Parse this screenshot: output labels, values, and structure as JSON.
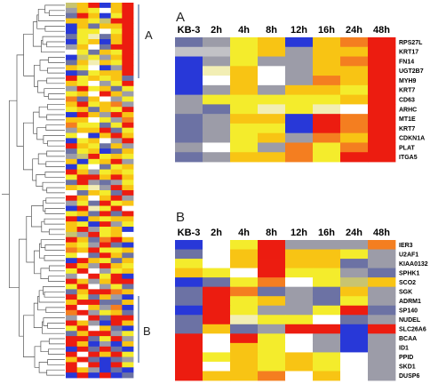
{
  "colors": {
    "blue": "#2838d8",
    "slate": "#6c72a4",
    "grey": "#9c9ca8",
    "lightgrey": "#c2c2c6",
    "white": "#ffffff",
    "paleyellow": "#f2eeb4",
    "yellow": "#f4ec2c",
    "gold": "#f8c414",
    "orange": "#f47e20",
    "red": "#ec1c10",
    "olive": "#c8c470",
    "dendrogram": "#555555",
    "bracket": "#4a6a9c"
  },
  "chart_data": [
    {
      "type": "heatmap",
      "panel_label": "",
      "title": "",
      "columns": [],
      "rows": [],
      "note": "Overview heatmap (6 columns × 72 rows) with hierarchical clustering dendrogram; bracket labels A and B",
      "bracket_labels": [
        "A",
        "B"
      ],
      "cells": [
        [
          "olive",
          "gold",
          "red",
          "blue",
          "gold",
          "red"
        ],
        [
          "grey",
          "gold",
          "yellow",
          "white",
          "gold",
          "red"
        ],
        [
          "slate",
          "red",
          "gold",
          "blue",
          "yellow",
          "red"
        ],
        [
          "gold",
          "gold",
          "yellow",
          "olive",
          "red",
          "red"
        ],
        [
          "blue",
          "gold",
          "slate",
          "gold",
          "gold",
          "red"
        ],
        [
          "blue",
          "yellow",
          "yellow",
          "white",
          "yellow",
          "red"
        ],
        [
          "slate",
          "yellow",
          "paleyellow",
          "slate",
          "gold",
          "red"
        ],
        [
          "blue",
          "yellow",
          "gold",
          "blue",
          "gold",
          "red"
        ],
        [
          "grey",
          "gold",
          "white",
          "slate",
          "red",
          "red"
        ],
        [
          "white",
          "yellow",
          "slate",
          "gold",
          "yellow",
          "red"
        ],
        [
          "blue",
          "olive",
          "yellow",
          "grey",
          "gold",
          "red"
        ],
        [
          "slate",
          "gold",
          "paleyellow",
          "gold",
          "yellow",
          "red"
        ],
        [
          "gold",
          "yellow",
          "white",
          "blue",
          "grey",
          "red"
        ],
        [
          "blue",
          "slate",
          "yellow",
          "gold",
          "gold",
          "red"
        ],
        [
          "red",
          "yellow",
          "gold",
          "yellow",
          "gold",
          "slate"
        ],
        [
          "gold",
          "yellow",
          "white",
          "grey",
          "yellow",
          "red"
        ],
        [
          "grey",
          "red",
          "yellow",
          "gold",
          "slate",
          "yellow"
        ],
        [
          "yellow",
          "gold",
          "white",
          "red",
          "gold",
          "grey"
        ],
        [
          "orange",
          "slate",
          "gold",
          "white",
          "grey",
          "yellow"
        ],
        [
          "gold",
          "red",
          "yellow",
          "gold",
          "orange",
          "grey"
        ],
        [
          "yellow",
          "gold",
          "slate",
          "gold",
          "yellow",
          "red"
        ],
        [
          "blue",
          "red",
          "gold",
          "grey",
          "red",
          "gold"
        ],
        [
          "gold",
          "gold",
          "white",
          "yellow",
          "grey",
          "orange"
        ],
        [
          "orange",
          "yellow",
          "yellow",
          "slate",
          "yellow",
          "red"
        ],
        [
          "grey",
          "gold",
          "gold",
          "red",
          "slate",
          "yellow"
        ],
        [
          "yellow",
          "white",
          "blue",
          "gold",
          "red",
          "gold"
        ],
        [
          "blue",
          "yellow",
          "gold",
          "white",
          "grey",
          "red"
        ],
        [
          "red",
          "gold",
          "yellow",
          "slate",
          "gold",
          "grey"
        ],
        [
          "slate",
          "yellow",
          "gold",
          "blue",
          "slate",
          "gold"
        ],
        [
          "grey",
          "olive",
          "red",
          "yellow",
          "gold",
          "yellow"
        ],
        [
          "gold",
          "blue",
          "yellow",
          "gold",
          "red",
          "grey"
        ],
        [
          "blue",
          "yellow",
          "white",
          "slate",
          "yellow",
          "gold"
        ],
        [
          "red",
          "gold",
          "grey",
          "yellow",
          "gold",
          "yellow"
        ],
        [
          "yellow",
          "red",
          "red",
          "gold",
          "red",
          "gold"
        ],
        [
          "slate",
          "red",
          "grey",
          "slate",
          "grey",
          "yellow"
        ],
        [
          "gold",
          "yellow",
          "paleyellow",
          "grey",
          "red",
          "gold"
        ],
        [
          "white",
          "slate",
          "gold",
          "yellow",
          "slate",
          "red"
        ],
        [
          "red",
          "gold",
          "white",
          "gold",
          "red",
          "grey"
        ],
        [
          "grey",
          "yellow",
          "slate",
          "red",
          "yellow",
          "gold"
        ],
        [
          "blue",
          "red",
          "paleyellow",
          "yellow",
          "red",
          "white"
        ],
        [
          "yellow",
          "gold",
          "slate",
          "red",
          "slate",
          "red"
        ],
        [
          "red",
          "blue",
          "gold",
          "yellow",
          "gold",
          "gold"
        ],
        [
          "gold",
          "yellow",
          "blue",
          "red",
          "grey",
          "yellow"
        ],
        [
          "gold",
          "red",
          "grey",
          "yellow",
          "gold",
          "blue"
        ],
        [
          "olive",
          "grey",
          "red",
          "yellow",
          "gold",
          "white"
        ],
        [
          "red",
          "gold",
          "slate",
          "orange",
          "red",
          "gold"
        ],
        [
          "gold",
          "yellow",
          "grey",
          "red",
          "slate",
          "blue"
        ],
        [
          "orange",
          "gold",
          "red",
          "yellow",
          "yellow",
          "gold"
        ],
        [
          "yellow",
          "white",
          "slate",
          "red",
          "gold",
          "slate"
        ],
        [
          "blue",
          "red",
          "gold",
          "yellow",
          "slate",
          "gold"
        ],
        [
          "red",
          "gold",
          "grey",
          "red",
          "gold",
          "yellow"
        ],
        [
          "yellow",
          "red",
          "white",
          "grey",
          "yellow",
          "gold"
        ],
        [
          "grey",
          "white",
          "red",
          "yellow",
          "red",
          "blue"
        ],
        [
          "red",
          "gold",
          "grey",
          "gold",
          "red",
          "red"
        ],
        [
          "yellow",
          "red",
          "white",
          "grey",
          "yellow",
          "slate"
        ],
        [
          "slate",
          "gold",
          "red",
          "red",
          "orange",
          "gold"
        ],
        [
          "red",
          "yellow",
          "slate",
          "gold",
          "grey",
          "blue"
        ],
        [
          "gold",
          "red",
          "red",
          "slate",
          "slate",
          "gold"
        ],
        [
          "red",
          "white",
          "gold",
          "grey",
          "orange",
          "blue"
        ],
        [
          "orange",
          "red",
          "grey",
          "yellow",
          "gold",
          "slate"
        ],
        [
          "grey",
          "white",
          "red",
          "slate",
          "red",
          "red"
        ],
        [
          "red",
          "gold",
          "grey",
          "blue",
          "red",
          "gold"
        ],
        [
          "yellow",
          "red",
          "white",
          "gold",
          "slate",
          "blue"
        ],
        [
          "slate",
          "gold",
          "red",
          "red",
          "grey",
          "yellow"
        ],
        [
          "red",
          "red",
          "slate",
          "yellow",
          "red",
          "grey"
        ],
        [
          "red",
          "gold",
          "blue",
          "grey",
          "blue",
          "gold"
        ],
        [
          "blue",
          "red",
          "slate",
          "red",
          "slate",
          "blue"
        ],
        [
          "red",
          "white",
          "red",
          "gold",
          "red",
          "yellow"
        ],
        [
          "gold",
          "red",
          "slate",
          "blue",
          "slate",
          "grey"
        ],
        [
          "red",
          "white",
          "red",
          "blue",
          "red",
          "yellow"
        ],
        [
          "red",
          "gold",
          "grey",
          "blue",
          "slate",
          "blue"
        ],
        [
          "blue",
          "red",
          "blue",
          "red",
          "blue",
          "slate"
        ]
      ]
    },
    {
      "type": "heatmap",
      "panel_label": "A",
      "title": "",
      "columns": [
        "KB-3",
        "2h",
        "4h",
        "8h",
        "12h",
        "16h",
        "24h",
        "48h"
      ],
      "rows": [
        "RPS27L",
        "KRT17",
        "FN14",
        "UGT2B7",
        "MYH9",
        "KRT7",
        "CD63",
        "ARHC",
        "MT1E",
        "KRT7",
        "CDKN1A",
        "PLAT",
        "ITGA5"
      ],
      "cells": [
        [
          "slate",
          "grey",
          "yellow",
          "gold",
          "blue",
          "gold",
          "orange",
          "red"
        ],
        [
          "lightgrey",
          "lightgrey",
          "yellow",
          "gold",
          "grey",
          "gold",
          "gold",
          "red"
        ],
        [
          "blue",
          "grey",
          "yellow",
          "grey",
          "grey",
          "gold",
          "orange",
          "red"
        ],
        [
          "blue",
          "paleyellow",
          "gold",
          "white",
          "grey",
          "gold",
          "gold",
          "red"
        ],
        [
          "blue",
          "white",
          "gold",
          "white",
          "grey",
          "orange",
          "gold",
          "red"
        ],
        [
          "blue",
          "grey",
          "gold",
          "grey",
          "gold",
          "gold",
          "yellow",
          "red"
        ],
        [
          "grey",
          "yellow",
          "yellow",
          "yellow",
          "yellow",
          "yellow",
          "gold",
          "red"
        ],
        [
          "grey",
          "slate",
          "yellow",
          "paleyellow",
          "yellow",
          "paleyellow",
          "white",
          "red"
        ],
        [
          "slate",
          "grey",
          "gold",
          "gold",
          "blue",
          "red",
          "orange",
          "red"
        ],
        [
          "slate",
          "grey",
          "yellow",
          "yellow",
          "blue",
          "red",
          "orange",
          "red"
        ],
        [
          "slate",
          "grey",
          "yellow",
          "gold",
          "grey",
          "orange",
          "gold",
          "red"
        ],
        [
          "grey",
          "white",
          "yellow",
          "grey",
          "orange",
          "yellow",
          "orange",
          "red"
        ],
        [
          "slate",
          "grey",
          "gold",
          "gold",
          "orange",
          "yellow",
          "red",
          "red"
        ]
      ]
    },
    {
      "type": "heatmap",
      "panel_label": "B",
      "title": "",
      "columns": [
        "KB-3",
        "2h",
        "4h",
        "8h",
        "12h",
        "16h",
        "24h",
        "48h"
      ],
      "rows": [
        "IER3",
        "U2AF1",
        "KIAA0132",
        "SPHK1",
        "SCO2",
        "SGK",
        "ADRM1",
        "SP140",
        "NUDEL",
        "SLC26A6",
        "BCAA",
        "ID1",
        "PPID",
        "SKD1",
        "DUSP6"
      ],
      "cells": [
        [
          "blue",
          "white",
          "yellow",
          "red",
          "grey",
          "grey",
          "grey",
          "orange"
        ],
        [
          "slate",
          "white",
          "gold",
          "red",
          "gold",
          "gold",
          "yellow",
          "grey"
        ],
        [
          "yellow",
          "white",
          "gold",
          "red",
          "gold",
          "gold",
          "slate",
          "grey"
        ],
        [
          "gold",
          "yellow",
          "white",
          "red",
          "yellow",
          "yellow",
          "grey",
          "slate"
        ],
        [
          "blue",
          "slate",
          "yellow",
          "orange",
          "white",
          "yellow",
          "olive",
          "gold"
        ],
        [
          "slate",
          "red",
          "orange",
          "slate",
          "grey",
          "slate",
          "gold",
          "grey"
        ],
        [
          "slate",
          "red",
          "yellow",
          "gold",
          "grey",
          "slate",
          "yellow",
          "grey"
        ],
        [
          "blue",
          "red",
          "yellow",
          "grey",
          "grey",
          "yellow",
          "red",
          "slate"
        ],
        [
          "slate",
          "red",
          "paleyellow",
          "yellow",
          "yellow",
          "white",
          "slate",
          "grey"
        ],
        [
          "slate",
          "gold",
          "slate",
          "grey",
          "red",
          "red",
          "blue",
          "red"
        ],
        [
          "red",
          "white",
          "red",
          "yellow",
          "white",
          "grey",
          "blue",
          "grey"
        ],
        [
          "red",
          "white",
          "gold",
          "yellow",
          "white",
          "grey",
          "blue",
          "grey"
        ],
        [
          "red",
          "yellow",
          "gold",
          "yellow",
          "gold",
          "yellow",
          "white",
          "grey"
        ],
        [
          "red",
          "white",
          "gold",
          "yellow",
          "gold",
          "yellow",
          "white",
          "grey"
        ],
        [
          "red",
          "gold",
          "gold",
          "orange",
          "white",
          "gold",
          "white",
          "grey"
        ]
      ]
    }
  ]
}
